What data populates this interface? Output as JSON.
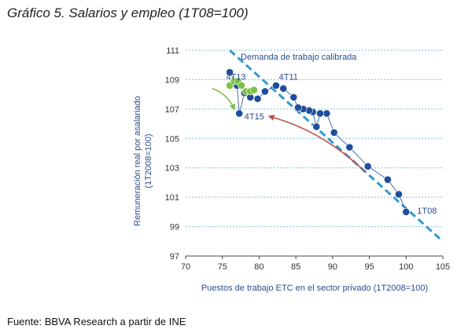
{
  "page": {
    "title": "Gráfico 5. Salarios y empleo (1T08=100)",
    "source": "Fuente: BBVA Research a partir de INE"
  },
  "chart_data": {
    "type": "scatter",
    "xlabel": "Puestos de trabajo ETC en el sector privado (1T2008=100)",
    "ylabel": "Remuneración real por asalariado",
    "ylabel2": "(1T2008=100)",
    "xlim": [
      70,
      105
    ],
    "ylim": [
      97,
      111
    ],
    "xticks": [
      70,
      75,
      80,
      85,
      90,
      95,
      100,
      105
    ],
    "yticks": [
      97,
      99,
      101,
      103,
      105,
      107,
      109,
      111
    ],
    "grid": "horizontal-dashed",
    "colors": {
      "series_blue": "#1f4e9c",
      "series_green": "#7ec04a",
      "line": "#4a6aa8",
      "demand_line": "#3399cc",
      "grid": "#7ec0e0",
      "arrow_green": "#7ec04a",
      "arrow_red": "#c0504d"
    },
    "series": [
      {
        "color": "#1f4e9c",
        "points": [
          [
            100.0,
            100.0
          ],
          [
            99.0,
            101.2
          ],
          [
            97.5,
            102.2
          ],
          [
            94.8,
            103.1
          ],
          [
            92.3,
            104.4
          ],
          [
            90.2,
            105.4
          ],
          [
            89.2,
            106.7
          ],
          [
            88.3,
            106.7
          ],
          [
            87.8,
            105.8
          ],
          [
            87.3,
            106.8
          ],
          [
            86.8,
            106.9
          ],
          [
            86.0,
            107.0
          ],
          [
            85.3,
            107.1
          ],
          [
            84.7,
            107.8
          ],
          [
            83.3,
            108.4
          ],
          [
            82.3,
            108.6
          ],
          [
            80.8,
            108.2
          ],
          [
            79.8,
            107.7
          ],
          [
            78.8,
            107.8
          ],
          [
            78.0,
            108.1
          ],
          [
            77.3,
            106.7
          ],
          [
            77.0,
            108.6
          ],
          [
            76.0,
            109.5
          ]
        ]
      },
      {
        "color": "#7ec04a",
        "points": [
          [
            76.0,
            108.6
          ],
          [
            76.6,
            108.9
          ],
          [
            77.1,
            108.9
          ],
          [
            77.6,
            108.6
          ],
          [
            78.2,
            108.2
          ],
          [
            78.8,
            108.2
          ],
          [
            79.3,
            108.3
          ]
        ]
      }
    ],
    "demand_line": {
      "label": "Demanda de trabajo calibrada",
      "from": [
        76.0,
        111.0
      ],
      "to": [
        105.0,
        98.0
      ]
    },
    "annotations": [
      {
        "text": "4T13",
        "at": [
          75.5,
          109.2
        ]
      },
      {
        "text": "4T11",
        "at": [
          82.7,
          109.2
        ]
      },
      {
        "text": "4T15",
        "at": [
          78.0,
          106.5
        ]
      },
      {
        "text": "1T08",
        "at": [
          101.5,
          100.1
        ]
      }
    ],
    "arrows": [
      {
        "color": "#7ec04a",
        "from": [
          73.6,
          108.4
        ],
        "to": [
          76.6,
          107.0
        ]
      },
      {
        "color": "#c0504d",
        "from": [
          94.5,
          102.7
        ],
        "to": [
          81.4,
          106.5
        ]
      }
    ]
  }
}
